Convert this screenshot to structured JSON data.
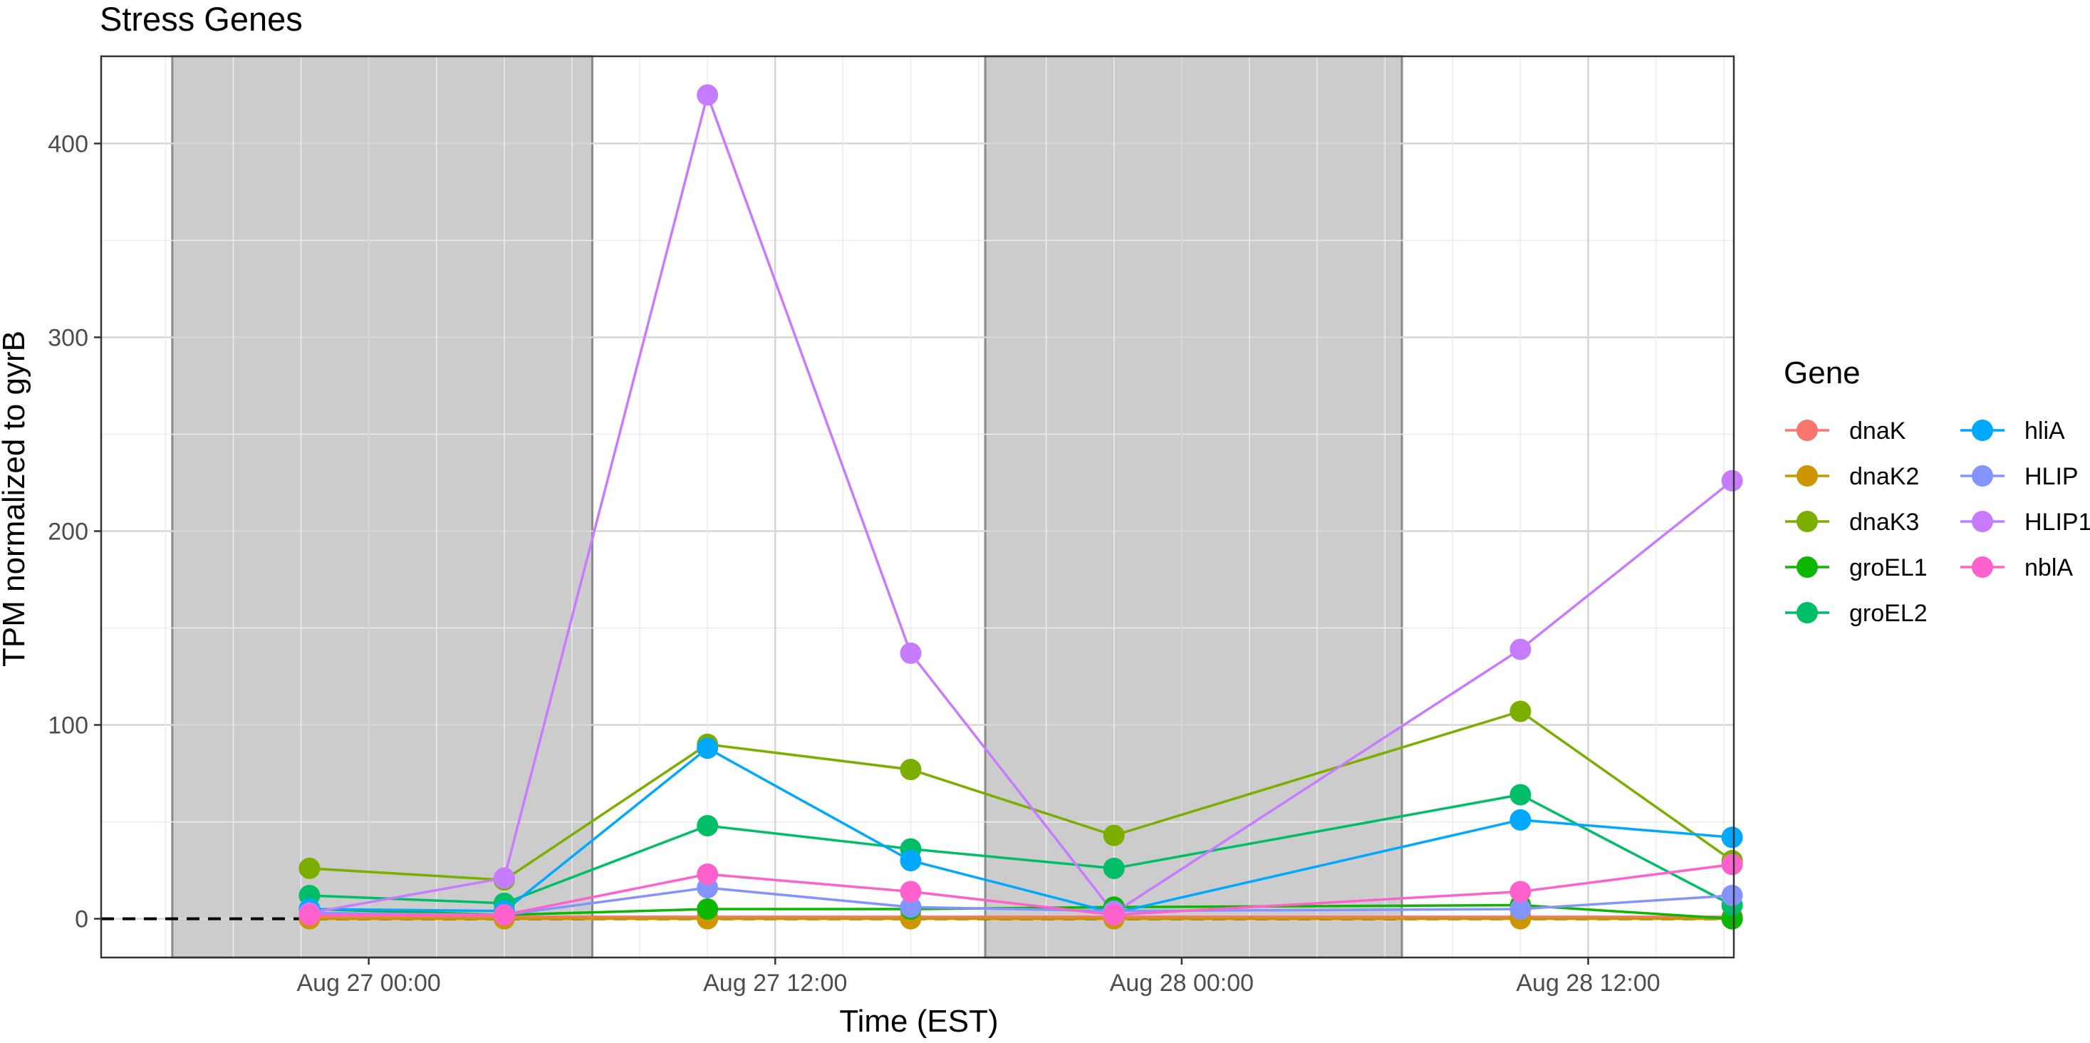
{
  "chart_data": {
    "type": "line",
    "title": "Stress Genes",
    "xlabel": "Time (EST)",
    "ylabel": "TPM normalized to gyrB",
    "ylim": [
      -20,
      445
    ],
    "y_ticks": [
      0,
      100,
      200,
      300,
      400
    ],
    "xlim_hours": [
      -7.9,
      40.3
    ],
    "x_ticks": [
      {
        "label": "Aug 27 00:00",
        "hours": 0
      },
      {
        "label": "Aug 27 12:00",
        "hours": 12
      },
      {
        "label": "Aug 28 00:00",
        "hours": 24
      },
      {
        "label": "Aug 28 12:00",
        "hours": 36
      }
    ],
    "x_times": [
      "Aug 26 22:15",
      "Aug 27 04:00",
      "Aug 27 10:00",
      "Aug 27 16:00",
      "Aug 27 22:00",
      "Aug 28 10:00",
      "Aug 28 16:15"
    ],
    "night_periods": [
      {
        "start": "Aug 26 19:50",
        "end": "Aug 27 06:35",
        "start_hours": -5.8,
        "end_hours": 6.6
      },
      {
        "start": "Aug 27 19:45",
        "end": "Aug 28 06:30",
        "start_hours": 18.2,
        "end_hours": 30.5
      }
    ],
    "reference_line": 0,
    "legend": {
      "title": "Gene",
      "position": "right"
    },
    "series": [
      {
        "name": "dnaK",
        "color": "#F8766D",
        "values": [
          1,
          1,
          1,
          1,
          1,
          1,
          1
        ]
      },
      {
        "name": "dnaK2",
        "color": "#CD9600",
        "values": [
          0,
          0,
          0,
          0,
          0,
          0,
          0
        ]
      },
      {
        "name": "dnaK3",
        "color": "#7CAE00",
        "values": [
          26,
          20,
          90,
          77,
          43,
          107,
          30
        ]
      },
      {
        "name": "groEL1",
        "color": "#0CB702",
        "values": [
          5,
          2,
          5,
          5,
          6,
          7,
          0
        ]
      },
      {
        "name": "groEL2",
        "color": "#00BE67",
        "values": [
          12,
          8,
          48,
          36,
          26,
          64,
          7
        ]
      },
      {
        "name": "hliA",
        "color": "#00A9FF",
        "values": [
          5,
          4,
          88,
          30,
          3,
          51,
          42
        ]
      },
      {
        "name": "HLIP",
        "color": "#8494FF",
        "values": [
          3,
          2,
          16,
          6,
          4,
          5,
          12
        ]
      },
      {
        "name": "HLIP1",
        "color": "#C77CFF",
        "values": [
          3,
          21,
          425,
          137,
          3,
          139,
          226
        ]
      },
      {
        "name": "nblA",
        "color": "#FF61CC",
        "values": [
          2,
          2,
          23,
          14,
          2,
          14,
          28
        ]
      }
    ]
  }
}
